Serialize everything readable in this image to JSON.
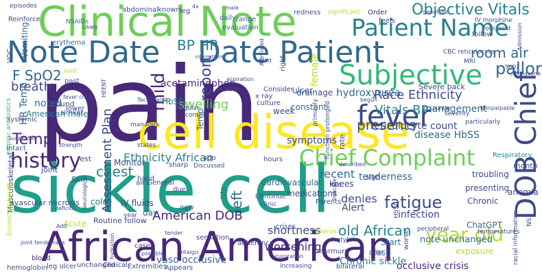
{
  "colors": {
    "background": "#ffffff",
    "palette": [
      "#440154",
      "#482878",
      "#3e4a89",
      "#31688e",
      "#26828e",
      "#1f9e89",
      "#35b779",
      "#6ece58",
      "#b5de2b",
      "#fde725"
    ]
  },
  "words": [
    {
      "text": "pain",
      "color": "#482878"
    },
    {
      "text": "sickle cell",
      "color": "#1f9e89"
    },
    {
      "text": "cell disease",
      "color": "#fde725"
    },
    {
      "text": "Clinical Note",
      "color": "#6ece58"
    },
    {
      "text": "African American",
      "color": "#482878"
    },
    {
      "text": "Note Date",
      "color": "#31688e"
    },
    {
      "text": "Date Patient",
      "color": "#31688e"
    },
    {
      "text": "Patient Name",
      "color": "#26828e"
    },
    {
      "text": "Subjective",
      "color": "#35b779"
    },
    {
      "text": "fever",
      "color": "#3e4a89"
    },
    {
      "text": "DOB Chief",
      "color": "#3e4a89"
    },
    {
      "text": "Chief Complaint",
      "color": "#6ece58"
    },
    {
      "text": "history",
      "color": "#482878"
    },
    {
      "text": "Objective Vitals",
      "color": "#26828e"
    },
    {
      "text": "year old",
      "color": "#b5de2b"
    },
    {
      "text": "fatigue",
      "color": "#3e4a89"
    },
    {
      "text": "mild",
      "color": "#482878"
    },
    {
      "text": "room air",
      "color": "#31688e"
    },
    {
      "text": "pallor",
      "color": "#31688e"
    },
    {
      "text": "BP HR",
      "color": "#26828e"
    },
    {
      "text": "F SpO2",
      "color": "#31688e"
    },
    {
      "text": "Temp F",
      "color": "#482878"
    },
    {
      "text": "Vitals BP",
      "color": "#26828e"
    },
    {
      "text": "Race Ethnicity",
      "color": "#3e4a89"
    },
    {
      "text": "Ethnicity African",
      "color": "#26828e"
    },
    {
      "text": "Assessment Plan",
      "color": "#3e4a89"
    },
    {
      "text": "report",
      "color": "#3e4a89"
    },
    {
      "text": "chest",
      "color": "#26828e"
    },
    {
      "text": "left",
      "color": "#31688e"
    },
    {
      "text": "presents",
      "color": "#3e4a89"
    },
    {
      "text": "swelling",
      "color": "#6ece58"
    },
    {
      "text": "hydroxyurea",
      "color": "#31688e"
    },
    {
      "text": "old African",
      "color": "#26828e"
    },
    {
      "text": "American DOB",
      "color": "#482878"
    },
    {
      "text": "breath",
      "color": "#3e4a89"
    },
    {
      "text": "HR Temp",
      "color": "#31688e"
    },
    {
      "text": "noted",
      "color": "#31688e"
    },
    {
      "text": "acetaminophen",
      "color": "#482878"
    },
    {
      "text": "symptoms",
      "color": "#3e4a89"
    },
    {
      "text": "tenderness",
      "color": "#31688e"
    },
    {
      "text": "shortness",
      "color": "#3e4a89"
    },
    {
      "text": "denies",
      "color": "#3e4a89"
    },
    {
      "text": "worsening",
      "color": "#482878"
    },
    {
      "text": "recent",
      "color": "#31688e"
    },
    {
      "text": "infection",
      "color": "#3e4a89"
    },
    {
      "text": "Chronic sickle",
      "color": "#26828e"
    },
    {
      "text": "vaso occlusive",
      "color": "#31688e"
    },
    {
      "text": "occlusive crisis",
      "color": "#482878"
    },
    {
      "text": "reticulocyte count",
      "color": "#3e4a89"
    },
    {
      "text": "disease HbSS",
      "color": "#31688e"
    },
    {
      "text": "management",
      "color": "#31688e"
    },
    {
      "text": "HbSS",
      "color": "#26828e"
    },
    {
      "text": "female",
      "color": "#b5de2b"
    },
    {
      "text": "Vomiting",
      "color": "#31688e"
    },
    {
      "text": "VOC",
      "color": "#3e4a89"
    },
    {
      "text": "Monitor",
      "color": "#3e4a89"
    },
    {
      "text": "IV fluids",
      "color": "#3e4a89"
    },
    {
      "text": "Alert",
      "color": "#3e4a89"
    },
    {
      "text": "American male",
      "color": "#26828e"
    },
    {
      "text": "medications",
      "color": "#3e4a89"
    },
    {
      "text": "Cardiovascular",
      "color": "#31688e"
    },
    {
      "text": "Temp",
      "color": "#31688e"
    },
    {
      "text": "ulcer",
      "color": "#31688e"
    },
    {
      "text": "week",
      "color": "#3e4a89"
    },
    {
      "text": "constant",
      "color": "#31688e"
    },
    {
      "text": "drainage",
      "color": "#3e4a89"
    },
    {
      "text": "hip",
      "color": "#26828e"
    },
    {
      "text": "knees",
      "color": "#3e4a89"
    },
    {
      "text": "day",
      "color": "#31688e"
    },
    {
      "text": "cold",
      "color": "#31688e"
    },
    {
      "text": "Acute",
      "color": "#b5de2b"
    },
    {
      "text": "Start",
      "color": "#31688e"
    },
    {
      "text": "last",
      "color": "#31688e"
    },
    {
      "text": "Chronic",
      "color": "#3e4a89"
    },
    {
      "text": "presenting",
      "color": "#3e4a89"
    },
    {
      "text": "troubling",
      "color": "#3e4a89"
    },
    {
      "text": "ChatGPT",
      "color": "#31688e"
    },
    {
      "text": "anemia",
      "color": "#3e4a89"
    },
    {
      "text": "month",
      "color": "#3e4a89"
    },
    {
      "text": "Respiratory",
      "color": "#26828e"
    },
    {
      "text": "Severe back",
      "color": "#3e4a89"
    },
    {
      "text": "note unchanged",
      "color": "#31688e"
    },
    {
      "text": "exposure",
      "color": "#b5de2b"
    },
    {
      "text": "Routine follow",
      "color": "#3e4a89"
    },
    {
      "text": "Musculoskeletal",
      "color": "#3e4a89"
    },
    {
      "text": "joint",
      "color": "#3e4a89"
    },
    {
      "text": "rest",
      "color": "#3e4a89"
    },
    {
      "text": "avascular necrosis",
      "color": "#3e4a89"
    },
    {
      "text": "Skin",
      "color": "#3e4a89"
    },
    {
      "text": "wound",
      "color": "#3e4a89"
    },
    {
      "text": "similar",
      "color": "#3e4a89"
    },
    {
      "text": "systemic",
      "color": "#3e4a89"
    },
    {
      "text": "empiric antibiotics",
      "color": "#35b779"
    },
    {
      "text": "Intact",
      "color": "#3e4a89"
    },
    {
      "text": "hemoglobin",
      "color": "#3e4a89"
    },
    {
      "text": "leg ulcer",
      "color": "#3e4a89"
    },
    {
      "text": "unchanged",
      "color": "#3e4a89"
    },
    {
      "text": "Clinical",
      "color": "#3e4a89"
    },
    {
      "text": "Extremities",
      "color": "#3e4a89"
    },
    {
      "text": "Appears",
      "color": "#3e4a89"
    },
    {
      "text": "blood",
      "color": "#482878"
    },
    {
      "text": "Suspected based",
      "color": "#b5de2b"
    },
    {
      "text": "episodes",
      "color": "#3e4a89"
    },
    {
      "text": "Reinforce",
      "color": "#3e4a89"
    },
    {
      "text": "abdominal",
      "color": "#3e4a89"
    },
    {
      "text": "leg",
      "color": "#3e4a89"
    },
    {
      "text": "daily",
      "color": "#31688e"
    },
    {
      "text": "range",
      "color": "#31688e"
    },
    {
      "text": "evaluation",
      "color": "#31688e"
    },
    {
      "text": "known",
      "color": "#3e4a89"
    },
    {
      "text": "NSAIDs",
      "color": "#31688e"
    },
    {
      "text": "redness",
      "color": "#3e4a89"
    },
    {
      "text": "significant",
      "color": "#b5de2b"
    },
    {
      "text": "Order",
      "color": "#482878"
    },
    {
      "text": "feels",
      "color": "#3e4a89"
    },
    {
      "text": "IV morphine",
      "color": "#3e4a89"
    },
    {
      "text": "folic acid",
      "color": "#3e4a89"
    },
    {
      "text": "erythema",
      "color": "#31688e"
    },
    {
      "text": "Consider",
      "color": "#3e4a89"
    },
    {
      "text": "motion",
      "color": "#3e4a89"
    },
    {
      "text": "x ray",
      "color": "#3e4a89"
    },
    {
      "text": "arm",
      "color": "#3e4a89"
    },
    {
      "text": "lower",
      "color": "#3e4a89"
    },
    {
      "text": "past",
      "color": "#3e4a89"
    },
    {
      "text": "said",
      "color": "#b5de2b"
    },
    {
      "text": "Tachycardic",
      "color": "#3e4a89"
    },
    {
      "text": "HEENT",
      "color": "#3e4a89"
    },
    {
      "text": "culture",
      "color": "#3e4a89"
    },
    {
      "text": "Regular",
      "color": "#3e4a89"
    },
    {
      "text": "context",
      "color": "#3e4a89"
    },
    {
      "text": "manages",
      "color": "#3e4a89"
    },
    {
      "text": "states",
      "color": "#3e4a89"
    },
    {
      "text": "sharp",
      "color": "#3e4a89"
    },
    {
      "text": "ago",
      "color": "#3e4a89"
    },
    {
      "text": "Discussed",
      "color": "#3e4a89"
    },
    {
      "text": "hand",
      "color": "#3e4a89"
    },
    {
      "text": "air General",
      "color": "#3e4a89"
    },
    {
      "text": "due",
      "color": "#3e4a89"
    },
    {
      "text": "Neurological",
      "color": "#3e4a89"
    },
    {
      "text": "year",
      "color": "#3e4a89"
    },
    {
      "text": "new",
      "color": "#3e4a89"
    },
    {
      "text": "sensation",
      "color": "#3e4a89"
    },
    {
      "text": "adherence",
      "color": "#3e4a89"
    },
    {
      "text": "case",
      "color": "#3e4a89"
    },
    {
      "text": "possible",
      "color": "#3e4a89"
    },
    {
      "text": "Continue",
      "color": "#3e4a89"
    },
    {
      "text": "clinic",
      "color": "#3e4a89"
    },
    {
      "text": "Parents",
      "color": "#3e4a89"
    },
    {
      "text": "murmurs",
      "color": "#3e4a89"
    },
    {
      "text": "icterus",
      "color": "#b5de2b"
    },
    {
      "text": "crises",
      "color": "#3e4a89"
    },
    {
      "text": "hours",
      "color": "#3e4a89"
    },
    {
      "text": "primarily",
      "color": "#3e4a89"
    },
    {
      "text": "function prolonged",
      "color": "#3e4a89"
    },
    {
      "text": "rate",
      "color": "#3e4a89"
    },
    {
      "text": "sign",
      "color": "#3e4a89"
    },
    {
      "text": "feet",
      "color": "#3e4a89"
    },
    {
      "text": "prior",
      "color": "#3e4a89"
    },
    {
      "text": "peripheral",
      "color": "#3e4a89"
    },
    {
      "text": "inspiration",
      "color": "#3e4a89"
    },
    {
      "text": "increasing",
      "color": "#3e4a89"
    },
    {
      "text": "bilateral",
      "color": "#3e4a89"
    },
    {
      "text": "worse",
      "color": "#3e4a89"
    },
    {
      "text": "dactylitis",
      "color": "#3e4a89"
    },
    {
      "text": "HbSC",
      "color": "#3e4a89"
    },
    {
      "text": "racial information",
      "color": "#3e4a89"
    },
    {
      "text": "NS",
      "color": "#3e4a89"
    },
    {
      "text": "temperatures",
      "color": "#3e4a89"
    },
    {
      "text": "begun",
      "color": "#3e4a89"
    },
    {
      "text": "counter",
      "color": "#3e4a89"
    },
    {
      "text": "severity",
      "color": "#3e4a89"
    },
    {
      "text": "particularly",
      "color": "#3e4a89"
    },
    {
      "text": "CBC reticulocyte",
      "color": "#3e4a89"
    },
    {
      "text": "MRI",
      "color": "#3e4a89"
    },
    {
      "text": "follow",
      "color": "#3e4a89"
    },
    {
      "text": "genotype",
      "color": "#3e4a89"
    },
    {
      "text": "SpO2",
      "color": "#3e4a89"
    },
    {
      "text": "Admission",
      "color": "#3e4a89"
    },
    {
      "text": "ceftriaxone",
      "color": "#3e4a89"
    },
    {
      "text": "described",
      "color": "#3e4a89"
    },
    {
      "text": "Indicate",
      "color": "#3e4a89"
    },
    {
      "text": "Alleviated",
      "color": "#3e4a89"
    },
    {
      "text": "right",
      "color": "#3e4a89"
    },
    {
      "text": "male",
      "color": "#3e4a89"
    },
    {
      "text": "4x",
      "color": "#3e4a89"
    },
    {
      "text": "intermittent",
      "color": "#3e4a89"
    },
    {
      "text": "Suspected",
      "color": "#3e4a89"
    },
    {
      "text": "strength",
      "color": "#3e4a89"
    },
    {
      "text": "Add",
      "color": "#3e4a89"
    },
    {
      "text": "deficits",
      "color": "#3e4a89"
    },
    {
      "text": "Likely",
      "color": "#3e4a89"
    },
    {
      "text": "joint tenderness",
      "color": "#3e4a89"
    },
    {
      "text": "fever chills",
      "color": "#3e4a89"
    },
    {
      "text": "hydration",
      "color": "#3e4a89"
    },
    {
      "text": "tender",
      "color": "#3e4a89"
    },
    {
      "text": "Antalgic",
      "color": "#3e4a89"
    },
    {
      "text": "aspiration",
      "color": "#3e4a89"
    },
    {
      "text": "Nonpalpable",
      "color": "#3e4a89"
    }
  ]
}
